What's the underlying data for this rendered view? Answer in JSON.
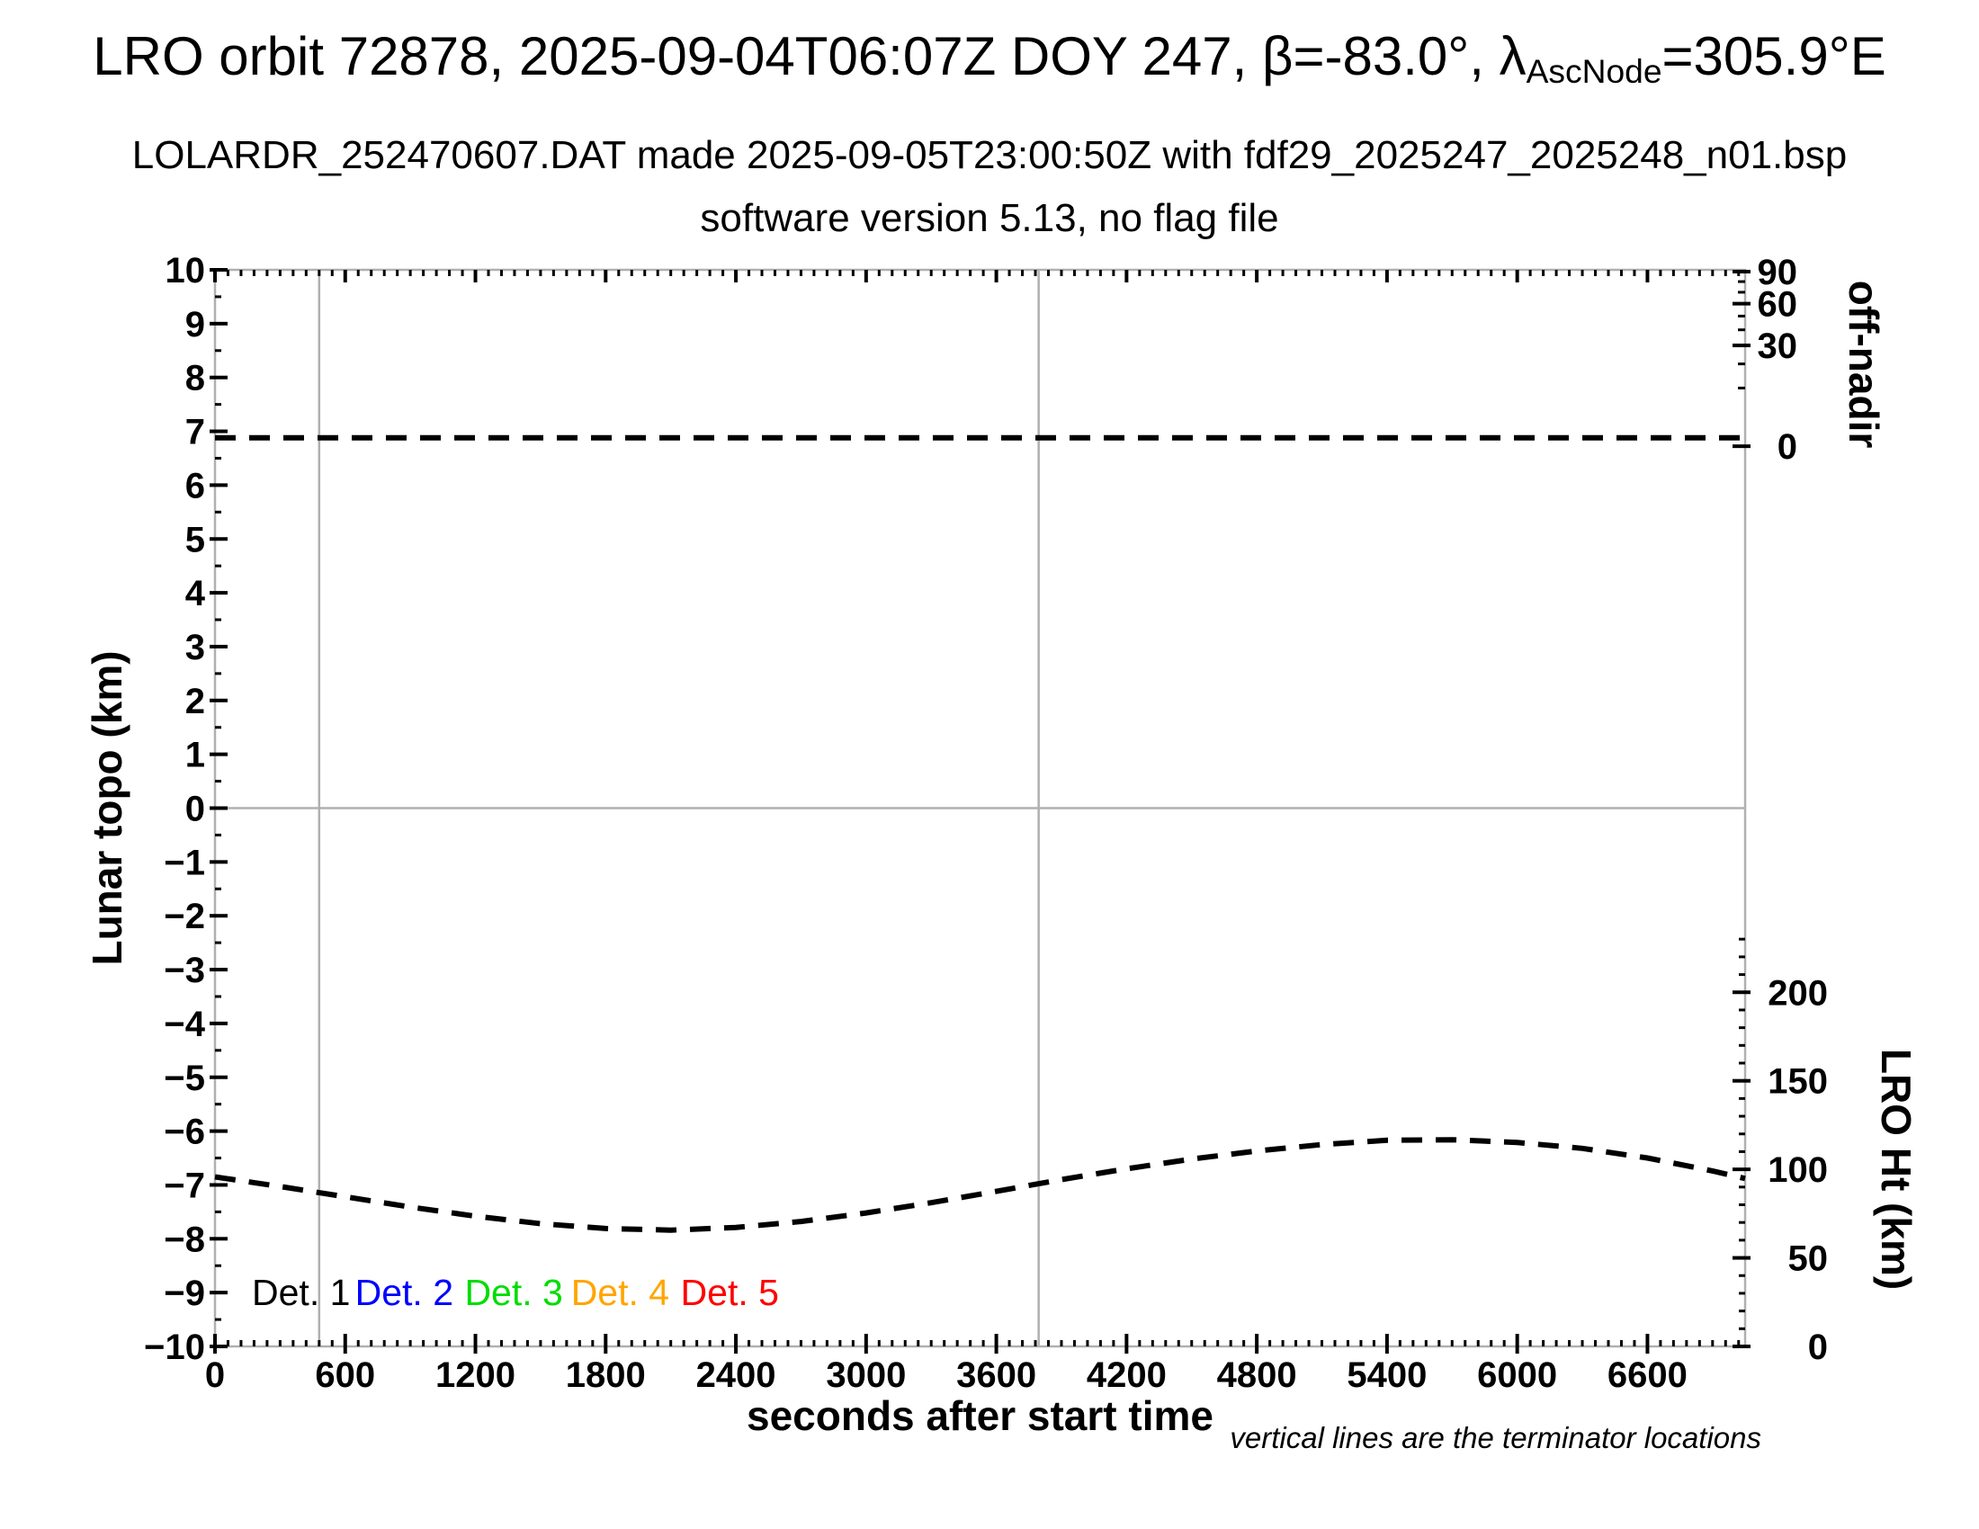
{
  "header": {
    "title_prefix": "LRO orbit 72878, 2025-09-04T06:07Z DOY 247, β=-83.0°, λ",
    "title_subscript": "AscNode",
    "title_suffix": "=305.9°E",
    "subtitle1": "LOLARDR_252470607.DAT made 2025-09-05T23:00:50Z with fdf29_2025247_2025248_n01.bsp",
    "subtitle2": "software version 5.13, no flag file"
  },
  "footnote": "vertical lines are the terminator locations",
  "colors": {
    "frame_gray": "#b0b0b0",
    "reference_gray": "#b0b0b0",
    "data_black": "#000000",
    "det1": "#000000",
    "det2": "#0000ff",
    "det3": "#00dd00",
    "det4": "#ffa500",
    "det5": "#ff0000"
  },
  "chart_data": {
    "type": "line",
    "title": "LRO orbit 72878, 2025-09-04T06:07Z DOY 247, beta=-83.0deg, lambda_AscNode=305.9degE",
    "x_axis": {
      "label": "seconds after start time",
      "range": [
        0,
        7050
      ],
      "major_tick_values": [
        0,
        600,
        1200,
        1800,
        2400,
        3000,
        3600,
        4200,
        4800,
        5400,
        6000,
        6600
      ],
      "major_tick_labels": [
        "0",
        "600",
        "1200",
        "1800",
        "2400",
        "3000",
        "3600",
        "4200",
        "4800",
        "5400",
        "6000",
        "6600"
      ],
      "minor_tick_interval_s": 60
    },
    "y_left_axis": {
      "label": "Lunar topo (km)",
      "range": [
        -10,
        10
      ],
      "major_tick_values": [
        10,
        9,
        8,
        7,
        6,
        5,
        4,
        3,
        2,
        1,
        0,
        -1,
        -2,
        -3,
        -4,
        -5,
        -6,
        -7,
        -8,
        -9,
        -10
      ],
      "major_tick_labels": [
        "10",
        "9",
        "8",
        "7",
        "6",
        "5",
        "4",
        "3",
        "2",
        "1",
        "0",
        "−1",
        "−2",
        "−3",
        "−4",
        "−5",
        "−6",
        "−7",
        "−8",
        "−9",
        "−10"
      ],
      "minor_tick_interval": 0.5
    },
    "y_right_top_axis": {
      "label": "off-nadir",
      "units": "degrees",
      "scale": "square-root spacing, 0 deg near topo +6.9, 90 deg at plot top",
      "major_tick_values": [
        90,
        60,
        30,
        0
      ],
      "major_tick_labels": [
        "90",
        "60",
        "30",
        "0"
      ],
      "minor_tick_values": [
        80,
        70,
        50,
        40,
        20,
        10
      ]
    },
    "y_right_bottom_axis": {
      "label": "LRO Ht (km)",
      "range_km": [
        0,
        230
      ],
      "major_tick_values": [
        200,
        150,
        100,
        50,
        0
      ],
      "major_tick_labels": [
        "200",
        "150",
        "100",
        "50",
        "0"
      ],
      "minor_tick_interval_km": 10,
      "km_zero_at_topo": -10,
      "km_per_topo_unit": 30.4
    },
    "reference_lines": {
      "horizontal_topo_zero": 0,
      "terminator_times_s": [
        480,
        3795
      ]
    },
    "series": [
      {
        "name": "off-nadir angle",
        "axis": "y_right_top",
        "style": "dashed",
        "color": "#000000",
        "description": "flat dashed line, off-nadir angle ~0 deg for whole pass, drawn just above the 0-deg tick",
        "t_s": [
          0,
          7050
        ],
        "value_deg": [
          0,
          0
        ],
        "plotted_topo_equivalent": [
          6.88,
          6.88
        ]
      },
      {
        "name": "LRO height",
        "axis": "y_right_bottom",
        "style": "dashed",
        "color": "#000000",
        "t_s": [
          0,
          300,
          600,
          900,
          1200,
          1500,
          1800,
          2100,
          2400,
          2700,
          3000,
          3300,
          3600,
          3900,
          4200,
          4500,
          4800,
          5100,
          5400,
          5700,
          6000,
          6300,
          6600,
          6900,
          7050
        ],
        "height_km_approx": [
          96,
          90,
          84,
          79,
          74,
          69,
          67,
          66,
          67,
          70,
          75,
          81,
          87,
          94,
          100,
          106,
          110,
          114,
          116,
          117,
          115,
          112,
          106,
          99,
          95
        ],
        "plotted_topo_equivalent": [
          -6.85,
          -7.03,
          -7.22,
          -7.41,
          -7.58,
          -7.72,
          -7.81,
          -7.84,
          -7.79,
          -7.68,
          -7.52,
          -7.33,
          -7.12,
          -6.9,
          -6.7,
          -6.52,
          -6.37,
          -6.25,
          -6.17,
          -6.16,
          -6.21,
          -6.32,
          -6.5,
          -6.74,
          -6.88
        ]
      }
    ],
    "legend": {
      "entries": [
        {
          "label": "Det. 1",
          "color": "#000000"
        },
        {
          "label": "Det. 2",
          "color": "#0000ff"
        },
        {
          "label": "Det. 3",
          "color": "#00dd00"
        },
        {
          "label": "Det. 4",
          "color": "#ffa500"
        },
        {
          "label": "Det. 5",
          "color": "#ff0000"
        }
      ],
      "t_positions_s": [
        170,
        645,
        1150,
        1640,
        2145
      ],
      "topo_y": -9
    },
    "grid": "off",
    "legend_position": "inside lower-left, in-line colored text"
  }
}
